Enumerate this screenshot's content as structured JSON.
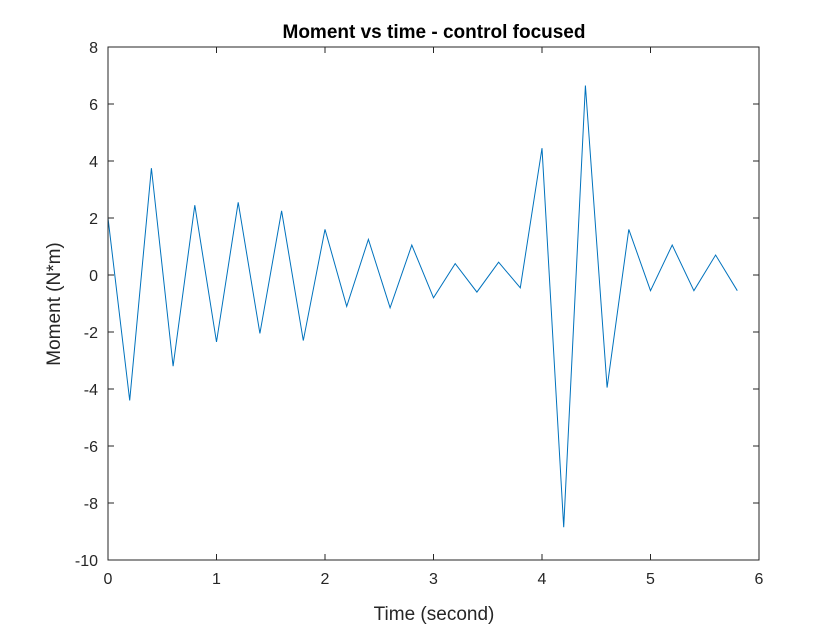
{
  "chart_data": {
    "type": "line",
    "title": "Moment vs time - control focused",
    "xlabel": "Time (second)",
    "ylabel": "Moment (N*m)",
    "xlim": [
      0,
      6
    ],
    "ylim": [
      -10,
      8
    ],
    "xticks": [
      0,
      1,
      2,
      3,
      4,
      5,
      6
    ],
    "yticks": [
      -10,
      -8,
      -6,
      -4,
      -2,
      0,
      2,
      4,
      6,
      8
    ],
    "grid": false,
    "legend": "none",
    "series": [
      {
        "color": "#0072BD",
        "x": [
          0,
          0.2,
          0.4,
          0.6,
          0.8,
          1.0,
          1.2,
          1.4,
          1.6,
          1.8,
          2.0,
          2.2,
          2.4,
          2.6,
          2.8,
          3.0,
          3.2,
          3.4,
          3.6,
          3.8,
          4.0,
          4.2,
          4.4,
          4.6,
          4.8,
          5.0,
          5.2,
          5.4,
          5.6,
          5.8
        ],
        "y": [
          2.0,
          -4.4,
          3.75,
          -3.2,
          2.45,
          -2.35,
          2.55,
          -2.05,
          2.25,
          -2.3,
          1.6,
          -1.1,
          1.25,
          -1.15,
          1.05,
          -0.8,
          0.4,
          -0.6,
          0.45,
          -0.45,
          4.45,
          -8.85,
          6.65,
          -3.95,
          1.6,
          -0.55,
          1.05,
          -0.55,
          0.7,
          -0.55
        ]
      }
    ]
  }
}
